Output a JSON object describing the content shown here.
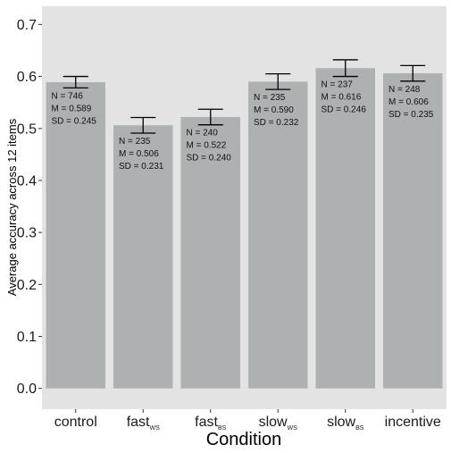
{
  "chart_data": {
    "type": "bar",
    "xlabel": "Condition",
    "ylabel": "Average accuracy across 12 items",
    "ylim": [
      -0.04,
      0.735
    ],
    "yticks": [
      "0.0",
      "0.1",
      "0.2",
      "0.3",
      "0.4",
      "0.5",
      "0.6",
      "0.7"
    ],
    "grid": false,
    "colors": {
      "panel": "#e3e3e3",
      "bar": "#aeb1b1",
      "errorbar": "#000000"
    },
    "categories": [
      {
        "main": "control",
        "sub": ""
      },
      {
        "main": "fast",
        "sub": "WS"
      },
      {
        "main": "fast",
        "sub": "BS"
      },
      {
        "main": "slow",
        "sub": "WS"
      },
      {
        "main": "slow",
        "sub": "BS"
      },
      {
        "main": "incentive",
        "sub": ""
      }
    ],
    "values": [
      0.589,
      0.506,
      0.522,
      0.59,
      0.616,
      0.606
    ],
    "error_low": [
      0.578,
      0.491,
      0.507,
      0.575,
      0.6,
      0.591
    ],
    "error_high": [
      0.6,
      0.521,
      0.537,
      0.605,
      0.632,
      0.621
    ],
    "annotations": [
      [
        "N = 746",
        "M = 0.589",
        "SD = 0.245"
      ],
      [
        "N = 235",
        "M = 0.506",
        "SD = 0.231"
      ],
      [
        "N = 240",
        "M = 0.522",
        "SD = 0.240"
      ],
      [
        "N = 235",
        "M = 0.590",
        "SD = 0.232"
      ],
      [
        "N = 237",
        "M = 0.616",
        "SD = 0.246"
      ],
      [
        "N = 248",
        "M = 0.606",
        "SD = 0.235"
      ]
    ]
  }
}
